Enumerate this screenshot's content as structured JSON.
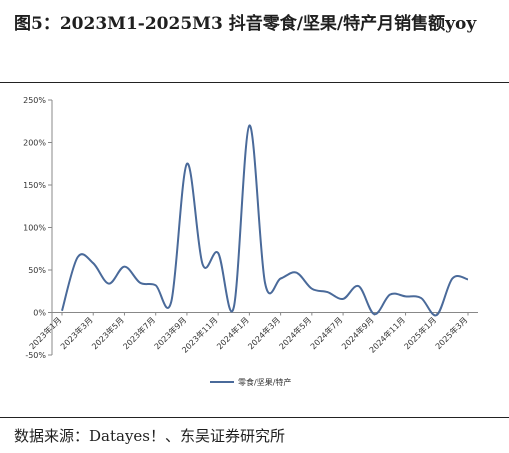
{
  "header": {
    "title": "图5：2023M1-2025M3 抖音零食/坚果/特产月销售额yoy"
  },
  "footer": {
    "source": "数据来源：Datayes！、东吴证券研究所"
  },
  "chart_data": {
    "type": "line",
    "title": "",
    "xlabel": "",
    "ylabel": "",
    "ylim": [
      -50,
      250
    ],
    "y_ticks": [
      "-50%",
      "0%",
      "50%",
      "100%",
      "150%",
      "200%",
      "250%"
    ],
    "y_tick_values": [
      -50,
      0,
      50,
      100,
      150,
      200,
      250
    ],
    "categories": [
      "2023年1月",
      "2023年2月",
      "2023年3月",
      "2023年4月",
      "2023年5月",
      "2023年6月",
      "2023年7月",
      "2023年8月",
      "2023年9月",
      "2023年10月",
      "2023年11月",
      "2023年12月",
      "2024年1月",
      "2024年2月",
      "2024年3月",
      "2024年4月",
      "2024年5月",
      "2024年6月",
      "2024年7月",
      "2024年8月",
      "2024年9月",
      "2024年10月",
      "2024年11月",
      "2024年12月",
      "2025年1月",
      "2025年2月",
      "2025年3月"
    ],
    "x_tick_labels": [
      "2023年1月",
      "2023年3月",
      "2023年5月",
      "2023年7月",
      "2023年9月",
      "2023年11月",
      "2024年1月",
      "2024年3月",
      "2024年5月",
      "2024年7月",
      "2024年9月",
      "2024年11月",
      "2025年1月",
      "2025年3月"
    ],
    "series": [
      {
        "name": "零食/坚果/特产",
        "color": "#4a6a9a",
        "values": [
          2,
          65,
          58,
          34,
          54,
          35,
          32,
          13,
          175,
          57,
          70,
          6,
          220,
          35,
          40,
          47,
          28,
          24,
          16,
          31,
          -2,
          21,
          19,
          17,
          -3,
          40,
          39
        ]
      }
    ],
    "grid": false,
    "legend_position": "bottom"
  }
}
